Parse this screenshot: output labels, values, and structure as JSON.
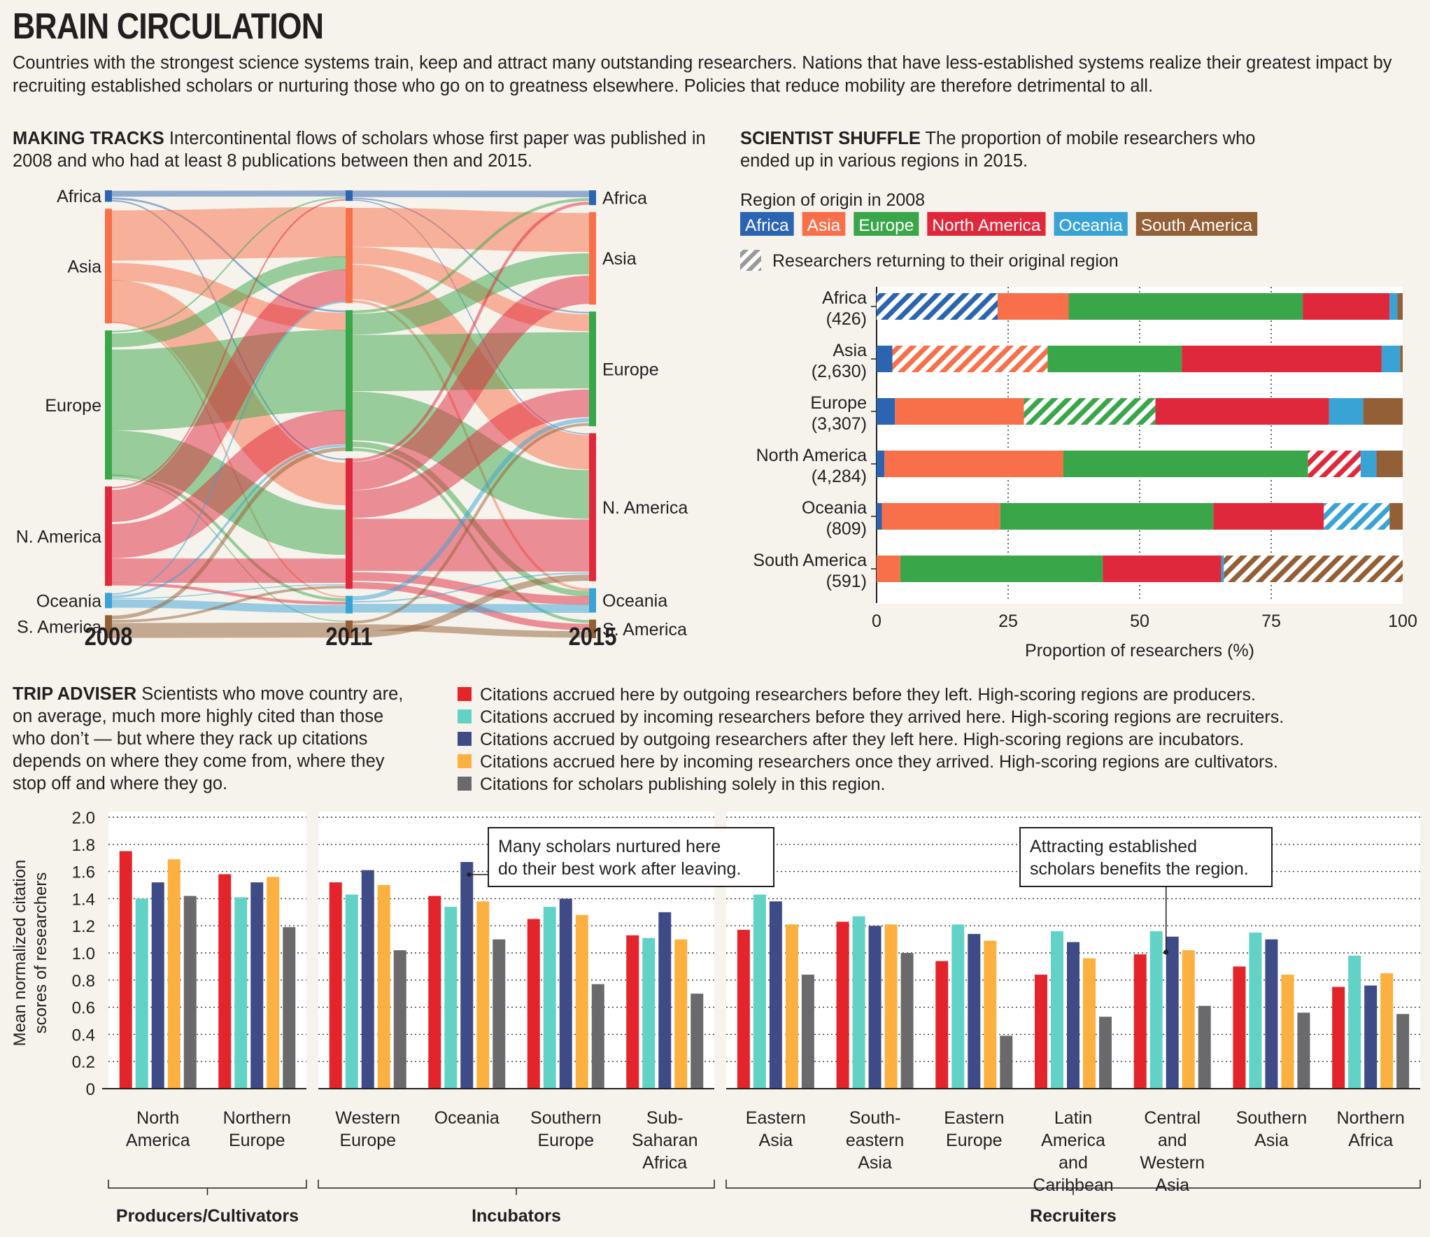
{
  "title": "BRAIN CIRCULATION",
  "subtitle": "Countries with the strongest science systems train, keep and attract many outstanding researchers. Nations that have less-established systems realize their greatest impact by recruiting established scholars or nurturing those who go on to greatness elsewhere. Policies that reduce mobility are therefore detrimental to all.",
  "making_tracks": {
    "heading": "MAKING TRACKS",
    "text": "Intercontinental flows of scholars whose first paper was published in 2008 and who had at least 8 publications between then and 2015."
  },
  "scientist_shuffle": {
    "heading": "SCIENTIST SHUFFLE",
    "text": "The proportion of mobile researchers who ended up in various regions in 2015.",
    "legend_title": "Region of origin in 2008",
    "returning_label": "Researchers returning to their original region"
  },
  "trip_adviser": {
    "heading": "TRIP ADVISER",
    "text": "Scientists who move country are, on average, much more highly cited than those who don’t — but where they rack up citations depends on where they come from, where they stop off and where they go."
  },
  "colors": {
    "Africa": "#2b64b1",
    "Asia": "#f7704a",
    "Europe": "#3aa64a",
    "North America": "#e0283c",
    "Oceania": "#3aa3d6",
    "South America": "#925f36",
    "before_left": "#e3242b",
    "before_arrived": "#63d2c6",
    "after_left": "#3f4b86",
    "once_arrived": "#fbb040",
    "solely": "#6a6a6c"
  },
  "chart_data": [
    {
      "type": "sankey",
      "columns": [
        "2008",
        "2011",
        "2015"
      ],
      "nodes": [
        "Africa",
        "Asia",
        "Europe",
        "N. America",
        "Oceania",
        "S. America"
      ],
      "node_weights": {
        "2008": [
          1.5,
          15,
          19.5,
          13,
          2,
          3
        ],
        "2011": [
          1.5,
          13.5,
          20,
          18.5,
          2.5,
          2.5
        ],
        "2015": [
          2,
          12.5,
          15.5,
          20,
          3.3,
          2.5
        ]
      },
      "flows_2008_2011": [
        {
          "from": "Africa",
          "to": "Africa",
          "value": 0.9
        },
        {
          "from": "Africa",
          "to": "Europe",
          "value": 0.35
        },
        {
          "from": "Africa",
          "to": "N. America",
          "value": 0.25
        },
        {
          "from": "Asia",
          "to": "Asia",
          "value": 7
        },
        {
          "from": "Asia",
          "to": "Europe",
          "value": 2.5
        },
        {
          "from": "Asia",
          "to": "N. America",
          "value": 5.2
        },
        {
          "from": "Asia",
          "to": "Oceania",
          "value": 0.3
        },
        {
          "from": "Europe",
          "to": "Africa",
          "value": 0.3
        },
        {
          "from": "Europe",
          "to": "Asia",
          "value": 2
        },
        {
          "from": "Europe",
          "to": "Europe",
          "value": 11
        },
        {
          "from": "Europe",
          "to": "N. America",
          "value": 5.5
        },
        {
          "from": "Europe",
          "to": "Oceania",
          "value": 0.5
        },
        {
          "from": "Europe",
          "to": "S. America",
          "value": 0.2
        },
        {
          "from": "N. America",
          "to": "Africa",
          "value": 0.3
        },
        {
          "from": "N. America",
          "to": "Asia",
          "value": 4.5
        },
        {
          "from": "N. America",
          "to": "Europe",
          "value": 4.7
        },
        {
          "from": "N. America",
          "to": "N. America",
          "value": 3
        },
        {
          "from": "N. America",
          "to": "Oceania",
          "value": 0.5
        },
        {
          "from": "Oceania",
          "to": "Asia",
          "value": 0.3
        },
        {
          "from": "Oceania",
          "to": "Europe",
          "value": 0.4
        },
        {
          "from": "Oceania",
          "to": "N. America",
          "value": 0.1
        },
        {
          "from": "Oceania",
          "to": "Oceania",
          "value": 1.2
        },
        {
          "from": "S. America",
          "to": "Europe",
          "value": 0.6
        },
        {
          "from": "S. America",
          "to": "N. America",
          "value": 0.4
        },
        {
          "from": "S. America",
          "to": "S. America",
          "value": 2
        }
      ],
      "flows_2011_2015": [
        {
          "from": "Africa",
          "to": "Africa",
          "value": 1
        },
        {
          "from": "Africa",
          "to": "Europe",
          "value": 0.3
        },
        {
          "from": "Africa",
          "to": "N. America",
          "value": 0.2
        },
        {
          "from": "Asia",
          "to": "Asia",
          "value": 5.5
        },
        {
          "from": "Asia",
          "to": "Europe",
          "value": 2.5
        },
        {
          "from": "Asia",
          "to": "N. America",
          "value": 5
        },
        {
          "from": "Asia",
          "to": "Oceania",
          "value": 0.5
        },
        {
          "from": "Europe",
          "to": "Africa",
          "value": 0.5
        },
        {
          "from": "Europe",
          "to": "Asia",
          "value": 3
        },
        {
          "from": "Europe",
          "to": "Europe",
          "value": 8
        },
        {
          "from": "Europe",
          "to": "N. America",
          "value": 7
        },
        {
          "from": "Europe",
          "to": "Oceania",
          "value": 1
        },
        {
          "from": "Europe",
          "to": "S. America",
          "value": 0.5
        },
        {
          "from": "N. America",
          "to": "Africa",
          "value": 0.5
        },
        {
          "from": "N. America",
          "to": "Asia",
          "value": 4
        },
        {
          "from": "N. America",
          "to": "Europe",
          "value": 4
        },
        {
          "from": "N. America",
          "to": "N. America",
          "value": 7.5
        },
        {
          "from": "N. America",
          "to": "Oceania",
          "value": 1.5
        },
        {
          "from": "N. America",
          "to": "S. America",
          "value": 1
        },
        {
          "from": "Oceania",
          "to": "Europe",
          "value": 0.7
        },
        {
          "from": "Oceania",
          "to": "N. America",
          "value": 0.3
        },
        {
          "from": "Oceania",
          "to": "Oceania",
          "value": 1.5
        },
        {
          "from": "S. America",
          "to": "Europe",
          "value": 0.5
        },
        {
          "from": "S. America",
          "to": "S. America",
          "value": 1
        },
        {
          "from": "S. America",
          "to": "N. America",
          "value": 1
        }
      ]
    },
    {
      "type": "bar",
      "orientation": "horizontal-stacked",
      "title": "SCIENTIST SHUFFLE",
      "xlabel": "Proportion of researchers (%)",
      "xlim": [
        0,
        100
      ],
      "xticks": [
        0,
        25,
        50,
        75,
        100
      ],
      "destinations": [
        "Africa",
        "Asia",
        "Europe",
        "North America",
        "Oceania",
        "South America"
      ],
      "rows": [
        {
          "origin": "Africa",
          "count": "(426)",
          "values": [
            23,
            13.5,
            44.5,
            16.5,
            1.5,
            1
          ]
        },
        {
          "origin": "Asia",
          "count": "(2,630)",
          "values": [
            3,
            29.5,
            25.5,
            38,
            3.5,
            0.5
          ]
        },
        {
          "origin": "Europe",
          "count": "(3,307)",
          "values": [
            3.5,
            24.5,
            25,
            33,
            6.5,
            7.5
          ]
        },
        {
          "origin": "North America",
          "count": "(4,284)",
          "values": [
            1.5,
            34,
            46.5,
            10,
            3,
            5
          ]
        },
        {
          "origin": "Oceania",
          "count": "(809)",
          "values": [
            1,
            22.5,
            40.5,
            21,
            12.5,
            2.5
          ]
        },
        {
          "origin": "South America",
          "count": "(591)",
          "values": [
            0,
            4.5,
            38.5,
            22.5,
            0.5,
            34
          ]
        }
      ]
    },
    {
      "type": "bar",
      "title": "TRIP ADVISER",
      "ylabel": "Mean normalized citation scores of researchers",
      "ylim": [
        0,
        2.0
      ],
      "yticks": [
        "0",
        "0.2",
        "0.4",
        "0.6",
        "0.8",
        "1.0",
        "1.2",
        "1.4",
        "1.6",
        "1.8",
        "2.0"
      ],
      "series_legend": [
        "Citations accrued here by outgoing researchers before they left. High-scoring regions are producers.",
        "Citations accrued by incoming researchers before they arrived here. High-scoring regions are recruiters.",
        "Citations accrued by outgoing researchers after they left here. High-scoring regions are incubators.",
        "Citations accrued here by incoming researchers once they arrived. High-scoring regions are cultivators.",
        "Citations for scholars publishing solely in this region."
      ],
      "groups": [
        {
          "name": "Producers/Cultivators",
          "regions": [
            {
              "label": "North America",
              "values": [
                1.75,
                1.4,
                1.52,
                1.69,
                1.42
              ]
            },
            {
              "label": "Northern Europe",
              "values": [
                1.58,
                1.41,
                1.52,
                1.56,
                1.19
              ]
            }
          ]
        },
        {
          "name": "Incubators",
          "regions": [
            {
              "label": "Western Europe",
              "values": [
                1.52,
                1.43,
                1.61,
                1.5,
                1.02
              ]
            },
            {
              "label": "Oceania",
              "values": [
                1.42,
                1.34,
                1.67,
                1.38,
                1.1
              ]
            },
            {
              "label": "Southern Europe",
              "values": [
                1.25,
                1.34,
                1.4,
                1.28,
                0.77
              ]
            },
            {
              "label": "Sub-Saharan Africa",
              "values": [
                1.13,
                1.11,
                1.3,
                1.1,
                0.7
              ]
            }
          ]
        },
        {
          "name": "Recruiters",
          "regions": [
            {
              "label": "Eastern Asia",
              "values": [
                1.17,
                1.43,
                1.38,
                1.21,
                0.84
              ]
            },
            {
              "label": "South-eastern Asia",
              "values": [
                1.23,
                1.27,
                1.2,
                1.21,
                1.0
              ]
            },
            {
              "label": "Eastern Europe",
              "values": [
                0.94,
                1.21,
                1.14,
                1.09,
                0.39
              ]
            },
            {
              "label": "Latin America and Caribbean",
              "values": [
                0.84,
                1.16,
                1.08,
                0.96,
                0.53
              ]
            },
            {
              "label": "Central and Western Asia",
              "values": [
                0.99,
                1.16,
                1.12,
                1.02,
                0.61
              ]
            },
            {
              "label": "Southern Asia",
              "values": [
                0.9,
                1.15,
                1.1,
                0.84,
                0.56
              ]
            },
            {
              "label": "Northern Africa",
              "values": [
                0.75,
                0.98,
                0.76,
                0.85,
                0.55
              ]
            }
          ]
        }
      ],
      "annotations": [
        {
          "text": "Many scholars nurtured here do their best work after leaving.",
          "region": "Oceania",
          "series": 2
        },
        {
          "text": "Attracting established scholars benefits the region.",
          "region": "Central and Western Asia",
          "series": 1
        }
      ]
    }
  ]
}
